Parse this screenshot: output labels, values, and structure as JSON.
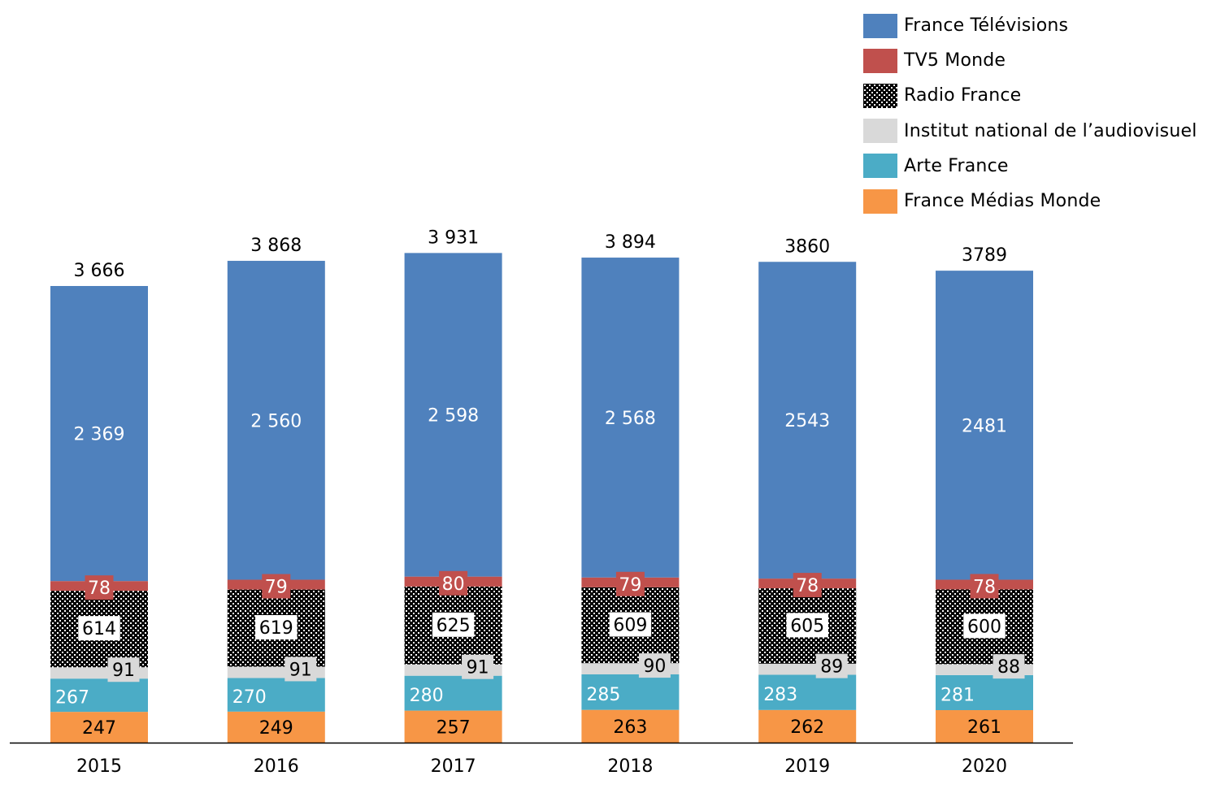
{
  "chart_data": {
    "type": "bar",
    "stacked": true,
    "title": "",
    "xlabel": "",
    "ylabel": "",
    "grid": false,
    "legend_position": "top-right",
    "categories": [
      "2015",
      "2016",
      "2017",
      "2018",
      "2019",
      "2020"
    ],
    "ylim": [
      0,
      4000
    ],
    "series": [
      {
        "name": "France Médias Monde",
        "color": "#F79646",
        "label_color": "#000000",
        "values": [
          247,
          249,
          257,
          263,
          262,
          261
        ],
        "labels": [
          "247",
          "249",
          "257",
          "263",
          "262",
          "261"
        ]
      },
      {
        "name": "Arte France",
        "color": "#4BACC6",
        "label_color": "#FFFFFF",
        "values": [
          267,
          270,
          280,
          285,
          283,
          281
        ],
        "labels": [
          "267",
          "270",
          "280",
          "285",
          "283",
          "281"
        ]
      },
      {
        "name": "Institut national de l’audiovisuel",
        "color": "#D9D9D9",
        "label_color": "#000000",
        "values": [
          91,
          91,
          91,
          90,
          89,
          88
        ],
        "labels": [
          "91",
          "91",
          "91",
          "90",
          "89",
          "88"
        ]
      },
      {
        "name": "Radio France",
        "color": "#000000",
        "pattern": "dotted",
        "label_color": "#000000",
        "values": [
          614,
          619,
          625,
          609,
          605,
          600
        ],
        "labels": [
          "614",
          "619",
          "625",
          "609",
          "605",
          "600"
        ]
      },
      {
        "name": "TV5 Monde",
        "color": "#C0504D",
        "label_color": "#FFFFFF",
        "values": [
          78,
          79,
          80,
          79,
          78,
          78
        ],
        "labels": [
          "78",
          "79",
          "80",
          "79",
          "78",
          "78"
        ]
      },
      {
        "name": "France Télévisions",
        "color": "#4F81BD",
        "label_color": "#FFFFFF",
        "values": [
          2369,
          2560,
          2598,
          2568,
          2543,
          2481
        ],
        "labels": [
          "2 369",
          "2 560",
          "2 598",
          "2 568",
          "2543",
          "2481"
        ]
      }
    ],
    "totals": {
      "values": [
        3666,
        3868,
        3931,
        3894,
        3860,
        3789
      ],
      "labels": [
        "3 666",
        "3 868",
        "3 931",
        "3 894",
        "3860",
        "3789"
      ]
    },
    "legend_order": [
      "France Télévisions",
      "TV5 Monde",
      "Radio France",
      "Institut national de l’audiovisuel",
      "Arte France",
      "France Médias Monde"
    ]
  },
  "legend": {
    "items": [
      {
        "label": "France Télévisions",
        "color": "#4F81BD"
      },
      {
        "label": "TV5 Monde",
        "color": "#C0504D"
      },
      {
        "label": "Radio France",
        "color": "#000000"
      },
      {
        "label": "Institut national de l’audiovisuel",
        "color": "#D9D9D9"
      },
      {
        "label": "Arte France",
        "color": "#4BACC6"
      },
      {
        "label": "France Médias Monde",
        "color": "#F79646"
      }
    ]
  }
}
